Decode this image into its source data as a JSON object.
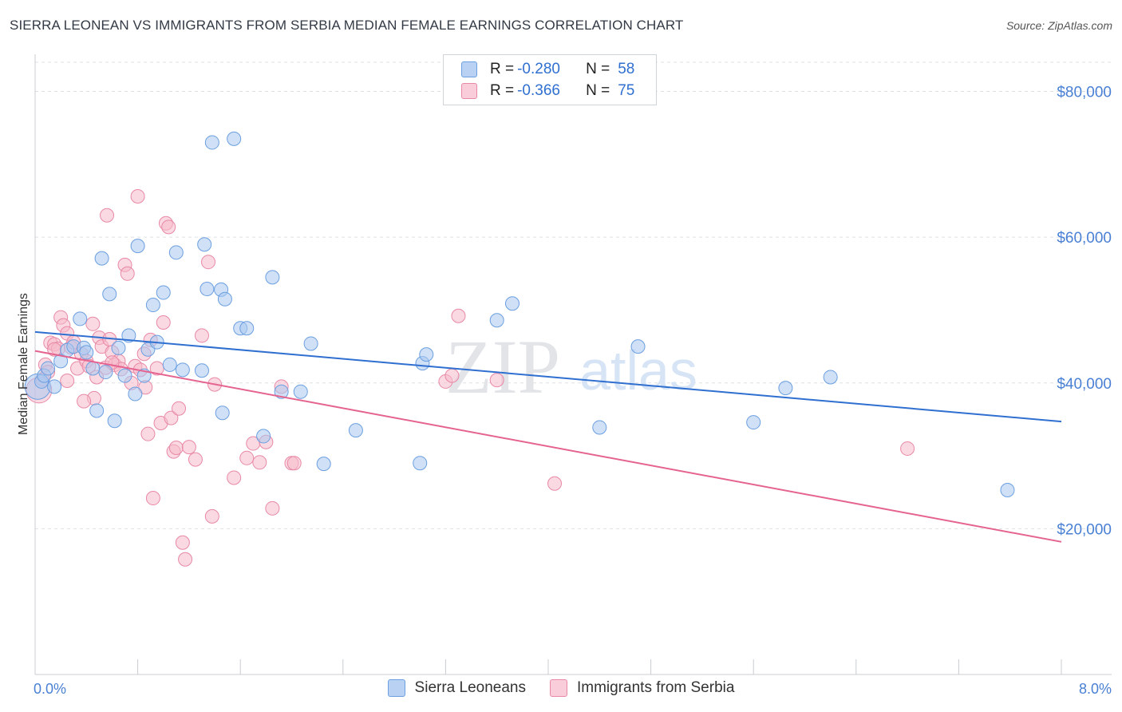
{
  "title": "SIERRA LEONEAN VS IMMIGRANTS FROM SERBIA MEDIAN FEMALE EARNINGS CORRELATION CHART",
  "source": "Source: ZipAtlas.com",
  "watermark": {
    "zip": "ZIP",
    "atlas": "atlas"
  },
  "legend_top": [
    {
      "r_label": "R =",
      "r_value": "-0.280",
      "n_label": "N =",
      "n_value": "58",
      "color": "#a9c8f0"
    },
    {
      "r_label": "R =",
      "r_value": "-0.366",
      "n_label": "N =",
      "n_value": "75",
      "color": "#f6b9ca"
    }
  ],
  "legend_bottom": [
    {
      "label": "Sierra Leoneans",
      "color": "#a9c8f0"
    },
    {
      "label": "Immigrants from Serbia",
      "color": "#f6b9ca"
    }
  ],
  "colors": {
    "blue_fill": "#a9c8f0",
    "blue_stroke": "#6b9fe0",
    "blue_line": "#2f6fd0",
    "pink_fill": "#f6b9ca",
    "pink_stroke": "#e889a6",
    "pink_line": "#e5638f",
    "tick_label": "#4a80d4",
    "grid": "#dde1e6"
  },
  "chart_data": {
    "type": "scatter",
    "xlabel": "",
    "ylabel": "Median Female Earnings",
    "xlim": [
      0,
      8
    ],
    "ylim": [
      0,
      84000
    ],
    "x_tick_labels": {
      "left": "0.0%",
      "right": "8.0%"
    },
    "y_ticks": [
      {
        "value": 20000,
        "label": "$20,000"
      },
      {
        "value": 40000,
        "label": "$40,000"
      },
      {
        "value": 60000,
        "label": "$60,000"
      },
      {
        "value": 80000,
        "label": "$80,000"
      }
    ],
    "series": [
      {
        "name": "Sierra Leoneans",
        "trend": {
          "x0": 0,
          "y0": 47000,
          "x1": 8,
          "y1": 34700
        },
        "points": [
          [
            0.02,
            39500
          ],
          [
            0.05,
            40200
          ],
          [
            0.07,
            41000
          ],
          [
            0.1,
            42000
          ],
          [
            0.15,
            39500
          ],
          [
            0.2,
            43000
          ],
          [
            0.25,
            44500
          ],
          [
            0.3,
            45000
          ],
          [
            0.35,
            48800
          ],
          [
            0.38,
            44800
          ],
          [
            0.4,
            44200
          ],
          [
            0.45,
            42000
          ],
          [
            0.48,
            36200
          ],
          [
            0.52,
            57100
          ],
          [
            0.55,
            41500
          ],
          [
            0.58,
            52200
          ],
          [
            0.62,
            34800
          ],
          [
            0.65,
            44800
          ],
          [
            0.7,
            41000
          ],
          [
            0.73,
            46500
          ],
          [
            0.78,
            38500
          ],
          [
            0.8,
            58800
          ],
          [
            0.85,
            41000
          ],
          [
            0.88,
            44600
          ],
          [
            0.92,
            50700
          ],
          [
            0.95,
            45600
          ],
          [
            1.0,
            52400
          ],
          [
            1.05,
            42500
          ],
          [
            1.1,
            57900
          ],
          [
            1.15,
            41800
          ],
          [
            1.3,
            41700
          ],
          [
            1.38,
            73000
          ],
          [
            1.55,
            73500
          ],
          [
            1.32,
            59000
          ],
          [
            1.34,
            52900
          ],
          [
            1.45,
            52800
          ],
          [
            1.48,
            51500
          ],
          [
            1.46,
            35900
          ],
          [
            1.6,
            47500
          ],
          [
            1.65,
            47500
          ],
          [
            1.78,
            32700
          ],
          [
            1.85,
            54500
          ],
          [
            1.92,
            38800
          ],
          [
            2.07,
            38800
          ],
          [
            2.15,
            45400
          ],
          [
            2.25,
            28900
          ],
          [
            2.5,
            33500
          ],
          [
            3.0,
            29000
          ],
          [
            3.02,
            42700
          ],
          [
            3.05,
            43900
          ],
          [
            3.6,
            48600
          ],
          [
            3.72,
            50900
          ],
          [
            4.4,
            33900
          ],
          [
            4.7,
            45000
          ],
          [
            5.6,
            34600
          ],
          [
            5.85,
            39300
          ],
          [
            6.2,
            40800
          ],
          [
            7.58,
            25300
          ]
        ]
      },
      {
        "name": "Immigrants from Serbia",
        "trend": {
          "x0": 0,
          "y0": 44400,
          "x1": 8,
          "y1": 18200
        },
        "points": [
          [
            0.03,
            39000
          ],
          [
            0.06,
            40500
          ],
          [
            0.08,
            42500
          ],
          [
            0.1,
            41500
          ],
          [
            0.12,
            45500
          ],
          [
            0.15,
            45300
          ],
          [
            0.18,
            44700
          ],
          [
            0.2,
            49000
          ],
          [
            0.22,
            47900
          ],
          [
            0.25,
            46800
          ],
          [
            0.28,
            44900
          ],
          [
            0.3,
            45600
          ],
          [
            0.33,
            42000
          ],
          [
            0.36,
            44000
          ],
          [
            0.4,
            43000
          ],
          [
            0.42,
            42300
          ],
          [
            0.45,
            48100
          ],
          [
            0.46,
            37900
          ],
          [
            0.48,
            40800
          ],
          [
            0.5,
            46200
          ],
          [
            0.52,
            45000
          ],
          [
            0.55,
            42100
          ],
          [
            0.56,
            63000
          ],
          [
            0.58,
            46000
          ],
          [
            0.6,
            44200
          ],
          [
            0.62,
            42500
          ],
          [
            0.65,
            43000
          ],
          [
            0.67,
            41900
          ],
          [
            0.7,
            56200
          ],
          [
            0.72,
            55000
          ],
          [
            0.75,
            40000
          ],
          [
            0.78,
            42300
          ],
          [
            0.8,
            65600
          ],
          [
            0.82,
            41800
          ],
          [
            0.85,
            44000
          ],
          [
            0.86,
            39400
          ],
          [
            0.88,
            33000
          ],
          [
            0.9,
            45900
          ],
          [
            0.92,
            24200
          ],
          [
            0.95,
            42000
          ],
          [
            0.98,
            34500
          ],
          [
            1.0,
            48300
          ],
          [
            1.02,
            61900
          ],
          [
            1.04,
            61400
          ],
          [
            1.06,
            35200
          ],
          [
            1.08,
            30600
          ],
          [
            1.1,
            31100
          ],
          [
            1.12,
            36500
          ],
          [
            1.15,
            18100
          ],
          [
            1.17,
            15800
          ],
          [
            1.2,
            31200
          ],
          [
            1.25,
            29500
          ],
          [
            1.3,
            46500
          ],
          [
            1.35,
            56600
          ],
          [
            1.38,
            21700
          ],
          [
            1.4,
            39800
          ],
          [
            1.55,
            27000
          ],
          [
            1.65,
            29700
          ],
          [
            1.7,
            31700
          ],
          [
            1.75,
            29100
          ],
          [
            1.8,
            31900
          ],
          [
            1.85,
            22800
          ],
          [
            1.92,
            39500
          ],
          [
            2.0,
            29000
          ],
          [
            2.02,
            29000
          ],
          [
            3.2,
            40200
          ],
          [
            3.25,
            41000
          ],
          [
            3.3,
            49200
          ],
          [
            3.6,
            40400
          ],
          [
            4.05,
            26200
          ],
          [
            6.8,
            31000
          ],
          [
            0.6,
            42800
          ],
          [
            0.38,
            37500
          ],
          [
            0.25,
            40300
          ],
          [
            0.15,
            44600
          ]
        ]
      }
    ]
  }
}
